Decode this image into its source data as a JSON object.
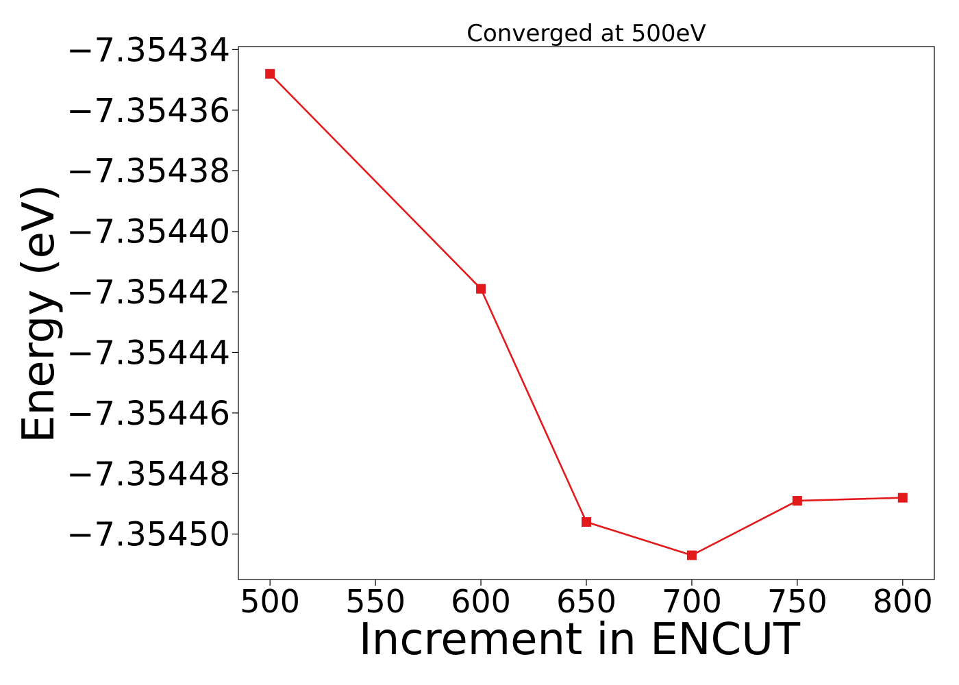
{
  "chart_data": {
    "type": "line",
    "title": "Converged at 500eV",
    "xlabel": "Increment in ENCUT",
    "ylabel": "Energy (eV)",
    "x": [
      500,
      600,
      650,
      700,
      750,
      800
    ],
    "series": [
      {
        "values": [
          -7.354348,
          -7.354419,
          -7.354496,
          -7.354507,
          -7.354489,
          -7.354488
        ],
        "color": "#e31a1c",
        "marker": "square"
      }
    ],
    "xlim": [
      485,
      815
    ],
    "ylim": [
      -7.354515,
      -7.354339
    ],
    "xticks": [
      500,
      550,
      600,
      650,
      700,
      750,
      800
    ],
    "xtick_labels": [
      "500",
      "550",
      "600",
      "650",
      "700",
      "750",
      "800"
    ],
    "yticks": [
      -7.35434,
      -7.35436,
      -7.35438,
      -7.3544,
      -7.35442,
      -7.35444,
      -7.35446,
      -7.35448,
      -7.3545
    ],
    "ytick_labels": [
      "−7.35434",
      "−7.35436",
      "−7.35438",
      "−7.35440",
      "−7.35442",
      "−7.35444",
      "−7.35446",
      "−7.35448",
      "−7.35450"
    ],
    "grid": false,
    "legend": "none"
  }
}
